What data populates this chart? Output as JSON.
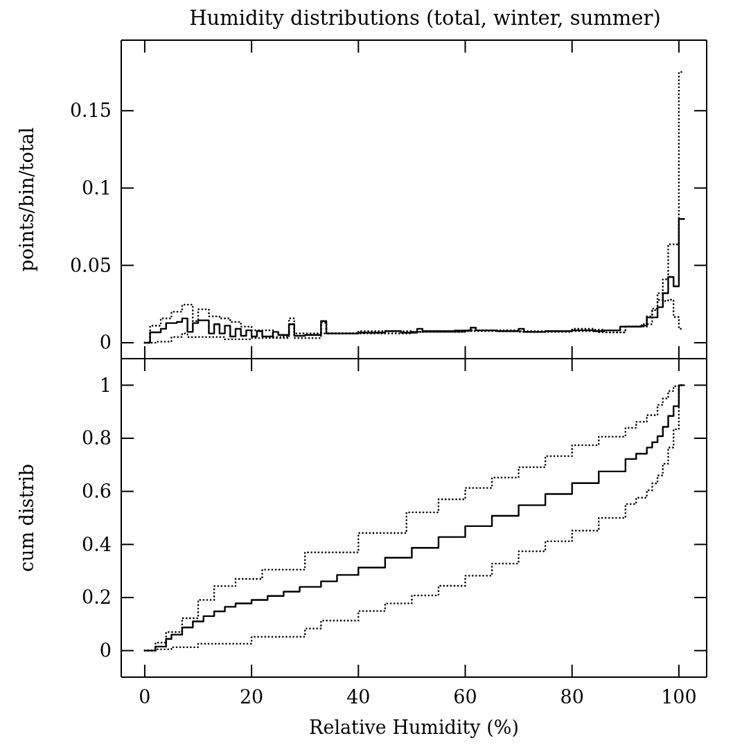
{
  "chart_data": [
    {
      "type": "step",
      "title": "Humidity distributions (total, winter, summer)",
      "ylabel": "points/bin/total",
      "xlim": [
        -4.4,
        105.2
      ],
      "ylim": [
        -0.0103,
        0.1956
      ],
      "tick_labels": "y",
      "xticks": [
        0,
        20,
        40,
        60,
        80,
        100
      ],
      "yticks": [
        0,
        0.05,
        0.1,
        0.15
      ],
      "series": [
        {
          "color": "#000000",
          "line_style": "solid",
          "x": [
            0,
            1,
            3,
            4,
            6,
            7,
            8,
            9,
            10,
            12,
            13,
            14,
            15,
            16,
            17,
            18,
            19,
            20,
            21,
            22,
            24,
            25,
            27,
            28,
            30,
            33,
            34,
            40,
            45,
            48,
            51,
            52,
            58,
            61,
            62,
            66,
            70,
            71,
            75,
            80,
            84,
            86,
            89,
            93,
            94,
            96,
            97,
            98,
            99,
            100,
            101
          ],
          "values": [
            0,
            0.0067,
            0.009,
            0.0127,
            0.0134,
            0.0157,
            0.007,
            0.0127,
            0.0145,
            0.006,
            0.012,
            0.006,
            0.011,
            0.004,
            0.009,
            0.0045,
            0.008,
            0.004,
            0.0075,
            0.004,
            0.007,
            0.005,
            0.012,
            0.0045,
            0.005,
            0.014,
            0.006,
            0.0065,
            0.0075,
            0.0065,
            0.009,
            0.0075,
            0.0078,
            0.0097,
            0.008,
            0.0075,
            0.009,
            0.007,
            0.0075,
            0.008,
            0.0075,
            0.008,
            0.0104,
            0.011,
            0.0164,
            0.023,
            0.032,
            0.0425,
            0.0365,
            0.08,
            0.08
          ]
        },
        {
          "color": "#000000",
          "line_style": "dotted",
          "x": [
            0,
            1,
            3,
            5,
            7,
            9,
            10,
            12,
            14,
            16,
            18,
            20,
            24,
            26,
            27,
            28,
            33,
            40,
            50,
            60,
            70,
            80,
            84,
            86,
            90,
            94,
            95,
            96,
            97,
            98,
            99,
            100,
            101
          ],
          "values": [
            0,
            0.011,
            0.0157,
            0.02,
            0.0246,
            0.014,
            0.0216,
            0.017,
            0.0157,
            0.0134,
            0.0104,
            0.008,
            0.0037,
            0.004,
            0.0157,
            0.006,
            0.006,
            0.0075,
            0.007,
            0.008,
            0.0075,
            0.009,
            0.0085,
            0.0067,
            0.0104,
            0.012,
            0.021,
            0.0276,
            0.027,
            0.0278,
            0.0166,
            0.009,
            0.009
          ]
        },
        {
          "color": "#000000",
          "line_style": "dotted",
          "x": [
            0,
            2,
            5,
            7,
            8,
            10,
            15,
            20,
            27,
            28,
            33,
            34,
            40,
            50,
            60,
            70,
            80,
            85,
            90,
            93,
            94,
            95,
            96,
            97,
            98,
            100,
            101
          ],
          "values": [
            0,
            0.0007,
            0.0037,
            0.006,
            0.0037,
            0.0037,
            0.0022,
            0.003,
            0.012,
            0.003,
            0.013,
            0.006,
            0.006,
            0.007,
            0.0075,
            0.007,
            0.0075,
            0.0067,
            0.0104,
            0.012,
            0.017,
            0.022,
            0.032,
            0.041,
            0.0636,
            0.175,
            0.175
          ]
        }
      ]
    },
    {
      "type": "step",
      "xlabel": "Relative Humidity (%)",
      "ylabel": "cum distrib",
      "xlim": [
        -4.4,
        105.2
      ],
      "ylim": [
        -0.1,
        1.1
      ],
      "xticks": [
        0,
        20,
        40,
        60,
        80,
        100
      ],
      "yticks": [
        0,
        0.2,
        0.4,
        0.6,
        0.8,
        1
      ],
      "series": [
        {
          "color": "#000000",
          "line_style": "solid",
          "x": [
            0,
            2,
            4,
            5,
            7,
            9,
            11,
            13,
            15,
            17,
            20,
            23,
            26,
            29,
            33,
            36,
            40,
            45,
            50,
            55,
            60,
            65,
            70,
            75,
            80,
            85,
            90,
            92,
            94,
            95,
            96,
            97,
            98,
            99,
            100,
            101
          ],
          "values": [
            0,
            0.015,
            0.044,
            0.06,
            0.087,
            0.11,
            0.13,
            0.148,
            0.165,
            0.178,
            0.191,
            0.206,
            0.222,
            0.24,
            0.261,
            0.285,
            0.313,
            0.35,
            0.387,
            0.428,
            0.469,
            0.508,
            0.548,
            0.59,
            0.631,
            0.675,
            0.722,
            0.742,
            0.765,
            0.785,
            0.808,
            0.843,
            0.884,
            0.921,
            1.0,
            1.0
          ]
        },
        {
          "color": "#000000",
          "line_style": "dotted",
          "x": [
            0,
            2,
            4,
            7,
            10,
            13,
            17,
            22,
            30,
            40,
            49,
            55,
            60,
            65,
            70,
            75,
            80,
            85,
            90,
            92,
            94,
            96,
            97,
            98,
            99,
            100,
            101
          ],
          "values": [
            0,
            0.03,
            0.07,
            0.122,
            0.191,
            0.243,
            0.27,
            0.305,
            0.37,
            0.443,
            0.521,
            0.57,
            0.613,
            0.652,
            0.691,
            0.733,
            0.774,
            0.806,
            0.839,
            0.862,
            0.887,
            0.926,
            0.95,
            0.978,
            0.996,
            1.0,
            1.0
          ]
        },
        {
          "color": "#000000",
          "line_style": "dotted",
          "x": [
            0,
            2,
            5,
            10,
            20,
            30,
            33,
            40,
            45,
            50,
            55,
            60,
            65,
            70,
            75,
            80,
            85,
            90,
            92,
            94,
            95,
            96,
            97,
            98,
            99,
            100,
            101
          ],
          "values": [
            0,
            0.005,
            0.013,
            0.026,
            0.052,
            0.083,
            0.113,
            0.149,
            0.178,
            0.208,
            0.244,
            0.282,
            0.328,
            0.374,
            0.412,
            0.452,
            0.5,
            0.552,
            0.576,
            0.604,
            0.63,
            0.66,
            0.704,
            0.765,
            0.834,
            1.0,
            1.0
          ]
        }
      ]
    }
  ]
}
